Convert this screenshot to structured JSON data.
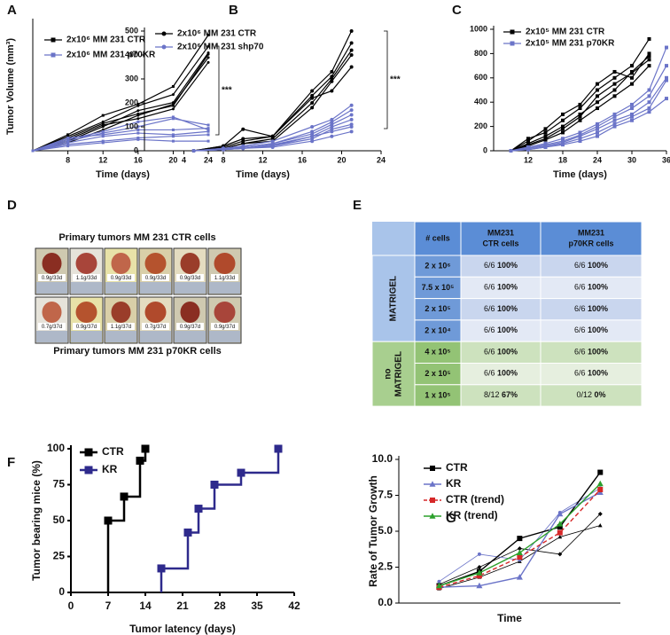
{
  "chart_data": [
    {
      "panel": "A",
      "type": "line",
      "xlabel": "Time (days)",
      "ylabel": "Tumor Volume (mm³)",
      "x": [
        4,
        8,
        12,
        16,
        20,
        24
      ],
      "xlim": [
        4,
        24.5
      ],
      "ylim": [
        0,
        800
      ],
      "xticks": [
        8,
        12,
        16,
        20,
        24
      ],
      "annotation": "***",
      "series": [
        {
          "name": "2x10⁶ MM 231 CTR",
          "color": "#000000",
          "marker": "square",
          "values": [
            0,
            100,
            220,
            290,
            400,
            720
          ]
        },
        {
          "color": "#000000",
          "marker": "circle",
          "values": [
            0,
            90,
            180,
            280,
            350,
            650
          ]
        },
        {
          "color": "#000000",
          "marker": "circle",
          "values": [
            0,
            60,
            150,
            250,
            300,
            610
          ]
        },
        {
          "color": "#000000",
          "marker": "circle",
          "values": [
            0,
            50,
            130,
            220,
            290,
            580
          ]
        },
        {
          "color": "#000000",
          "marker": "circle",
          "values": [
            0,
            70,
            160,
            200,
            260,
            550
          ]
        },
        {
          "color": "#000000",
          "marker": "circle",
          "values": [
            0,
            80,
            170,
            230,
            280,
            600
          ]
        },
        {
          "name": "2x10⁶ MM 231 p70KR",
          "color": "#6b74c8",
          "marker": "square",
          "values": [
            0,
            60,
            110,
            150,
            200,
            160
          ]
        },
        {
          "color": "#6b74c8",
          "marker": "square",
          "values": [
            0,
            80,
            100,
            130,
            130,
            140
          ]
        },
        {
          "color": "#6b74c8",
          "marker": "square",
          "values": [
            0,
            50,
            90,
            110,
            100,
            120
          ]
        },
        {
          "color": "#6b74c8",
          "marker": "square",
          "values": [
            0,
            40,
            60,
            80,
            90,
            100
          ]
        },
        {
          "color": "#6b74c8",
          "marker": "square",
          "values": [
            0,
            30,
            50,
            70,
            60,
            60
          ]
        },
        {
          "color": "#6b74c8",
          "marker": "square",
          "values": [
            0,
            70,
            120,
            180,
            210,
            130
          ]
        }
      ]
    },
    {
      "panel": "B",
      "type": "line",
      "xlabel": "Time (days)",
      "x": [
        5,
        8,
        10,
        13,
        17,
        19,
        21
      ],
      "xlim": [
        0,
        24
      ],
      "ylim": [
        0,
        500
      ],
      "xticks": [
        4,
        8,
        12,
        16,
        20,
        24
      ],
      "yticks": [
        0,
        100,
        200,
        300,
        400,
        500
      ],
      "annotation": "***",
      "series": [
        {
          "name": "2x10⁶ MM 231 CTR",
          "color": "#000000",
          "marker": "circle",
          "values": [
            0,
            20,
            90,
            60,
            250,
            330,
            500
          ]
        },
        {
          "color": "#000000",
          "marker": "circle",
          "values": [
            0,
            15,
            40,
            60,
            230,
            310,
            450
          ]
        },
        {
          "color": "#000000",
          "marker": "circle",
          "values": [
            0,
            10,
            30,
            50,
            200,
            300,
            420
          ]
        },
        {
          "color": "#000000",
          "marker": "circle",
          "values": [
            0,
            10,
            30,
            40,
            180,
            290,
            400
          ]
        },
        {
          "color": "#000000",
          "marker": "circle",
          "values": [
            0,
            20,
            50,
            60,
            220,
            250,
            350
          ]
        },
        {
          "name": "2x10⁶ MM 231 shp70",
          "color": "#6b74c8",
          "marker": "circle",
          "values": [
            0,
            10,
            20,
            40,
            100,
            130,
            190
          ]
        },
        {
          "color": "#6b74c8",
          "marker": "circle",
          "values": [
            0,
            10,
            15,
            30,
            80,
            120,
            170
          ]
        },
        {
          "color": "#6b74c8",
          "marker": "circle",
          "values": [
            0,
            5,
            15,
            30,
            70,
            110,
            150
          ]
        },
        {
          "color": "#6b74c8",
          "marker": "circle",
          "values": [
            0,
            5,
            10,
            25,
            60,
            100,
            130
          ]
        },
        {
          "color": "#6b74c8",
          "marker": "circle",
          "values": [
            0,
            5,
            10,
            20,
            50,
            90,
            110
          ]
        },
        {
          "color": "#6b74c8",
          "marker": "circle",
          "values": [
            0,
            5,
            10,
            20,
            60,
            80,
            100
          ]
        },
        {
          "color": "#6b74c8",
          "marker": "circle",
          "values": [
            0,
            5,
            10,
            15,
            40,
            60,
            80
          ]
        }
      ]
    },
    {
      "panel": "C",
      "type": "line",
      "xlabel": "Time (days)",
      "x": [
        9,
        12,
        15,
        18,
        21,
        24,
        27,
        30,
        33,
        36
      ],
      "xlim": [
        6,
        36
      ],
      "ylim": [
        0,
        1000
      ],
      "xticks": [
        12,
        18,
        24,
        30,
        36
      ],
      "yticks": [
        0,
        200,
        400,
        600,
        800,
        1000
      ],
      "series": [
        {
          "name": "2x10⁵ MM 231 CTR",
          "color": "#000000",
          "marker": "square",
          "values": [
            0,
            100,
            150,
            250,
            350,
            500,
            600,
            700,
            920,
            null
          ]
        },
        {
          "color": "#000000",
          "marker": "square",
          "values": [
            0,
            80,
            180,
            300,
            380,
            550,
            650,
            600,
            800,
            null
          ]
        },
        {
          "color": "#000000",
          "marker": "square",
          "values": [
            0,
            60,
            120,
            200,
            300,
            400,
            500,
            650,
            780,
            null
          ]
        },
        {
          "color": "#000000",
          "marker": "square",
          "values": [
            0,
            50,
            100,
            180,
            280,
            450,
            550,
            640,
            750,
            null
          ]
        },
        {
          "color": "#000000",
          "marker": "square",
          "values": [
            0,
            40,
            90,
            150,
            250,
            350,
            450,
            550,
            700,
            null
          ]
        },
        {
          "name": "2x10⁵ MM 231 p70KR",
          "color": "#6b74c8",
          "marker": "square",
          "values": [
            0,
            30,
            60,
            100,
            150,
            220,
            300,
            380,
            500,
            850
          ]
        },
        {
          "color": "#6b74c8",
          "marker": "square",
          "values": [
            0,
            20,
            50,
            80,
            130,
            200,
            280,
            350,
            450,
            700
          ]
        },
        {
          "color": "#6b74c8",
          "marker": "square",
          "values": [
            0,
            20,
            40,
            70,
            120,
            180,
            250,
            300,
            400,
            600
          ]
        },
        {
          "color": "#6b74c8",
          "marker": "square",
          "values": [
            0,
            10,
            30,
            60,
            100,
            150,
            220,
            280,
            350,
            580
          ]
        },
        {
          "color": "#6b74c8",
          "marker": "square",
          "values": [
            0,
            10,
            30,
            50,
            80,
            120,
            200,
            250,
            320,
            430
          ]
        }
      ]
    },
    {
      "panel": "F",
      "type": "step",
      "xlabel": "Tumor latency (days)",
      "ylabel": "Tumor bearing mice (%)",
      "xlim": [
        0,
        42
      ],
      "ylim": [
        0,
        100
      ],
      "xticks": [
        0,
        7,
        14,
        21,
        28,
        35,
        42
      ],
      "yticks": [
        0,
        25,
        50,
        75,
        100
      ],
      "series": [
        {
          "name": "CTR",
          "color": "#000000",
          "marker": "square",
          "x": [
            7,
            10,
            13,
            14
          ],
          "values": [
            50,
            66.7,
            91.7,
            100
          ]
        },
        {
          "name": "KR",
          "color": "#2e2a8c",
          "marker": "square",
          "x": [
            17,
            22,
            24,
            27,
            32,
            39
          ],
          "values": [
            16.7,
            41.7,
            58.3,
            75,
            83.3,
            100
          ]
        }
      ]
    },
    {
      "panel": "G",
      "type": "line",
      "xlabel": "Time",
      "ylabel": "Rate of Tumor Growth",
      "x": [
        1,
        2,
        3,
        4,
        5
      ],
      "xlim": [
        0,
        5.5
      ],
      "ylim": [
        0,
        10
      ],
      "yticks": [
        {
          "value": 0,
          "label": "0.0"
        },
        {
          "value": 2.5,
          "label": "2.5"
        },
        {
          "value": 5,
          "label": "5.0"
        },
        {
          "value": 7.5,
          "label": "7.5"
        },
        {
          "value": 10,
          "label": "10.0"
        }
      ],
      "series": [
        {
          "color": "#000000",
          "marker": "diamond",
          "values": [
            1.3,
            2.5,
            3.8,
            3.4,
            6.2
          ]
        },
        {
          "color": "#000000",
          "marker": "triangle",
          "values": [
            1.0,
            1.8,
            2.9,
            4.6,
            5.4
          ]
        },
        {
          "color": "#6b74c8",
          "marker": "circle",
          "values": [
            1.5,
            3.4,
            3.0,
            6.3,
            8.0
          ]
        },
        {
          "name": "CTR",
          "color": "#000000",
          "marker": "square",
          "values": [
            1.2,
            2.2,
            4.5,
            5.3,
            9.1
          ]
        },
        {
          "name": "KR",
          "color": "#6b74c8",
          "marker": "triangle",
          "values": [
            1.1,
            1.2,
            1.8,
            6.2,
            7.7
          ]
        },
        {
          "name": "CTR (trend)",
          "color": "#d62728",
          "marker": "square",
          "dash": true,
          "values": [
            1.1,
            1.9,
            3.2,
            4.9,
            7.9
          ]
        },
        {
          "name": "KR (trend)",
          "color": "#2ca02c",
          "marker": "triangle",
          "values": [
            1.2,
            2.1,
            3.5,
            5.5,
            8.3
          ]
        }
      ]
    }
  ],
  "photo_panel": {
    "panel": "D",
    "top_title": "Primary tumors MM 231 CTR cells",
    "top_labels": [
      "0.9g/33d",
      "1.1g/33d",
      "0.9g/33d",
      "0.9g/33d",
      "0.9g/33d",
      "1.1g/33d"
    ],
    "bottom_title": "Primary tumors MM 231 p70KR cells",
    "bottom_labels": [
      "0.7g/37d",
      "0.9g/37d",
      "1.1g/37d",
      "0.7g/37d",
      "0.9g/37d",
      "0.9g/37d"
    ]
  },
  "table_panel": {
    "panel": "E",
    "header": [
      "# cells",
      [
        "MM231",
        "CTR cells"
      ],
      [
        "MM231",
        "p70KR cells"
      ]
    ],
    "groups": [
      {
        "label": [
          "MATRIGEL"
        ],
        "rows": [
          [
            "2 x 10⁶",
            [
              "6/6",
              "100%"
            ],
            [
              "6/6",
              "100%"
            ]
          ],
          [
            "7.5 x 10⁵",
            [
              "6/6",
              "100%"
            ],
            [
              "6/6",
              "100%"
            ]
          ],
          [
            "2 x 10⁵",
            [
              "6/6",
              "100%"
            ],
            [
              "6/6",
              "100%"
            ]
          ],
          [
            "2 x 10⁴",
            [
              "6/6",
              "100%"
            ],
            [
              "6/6",
              "100%"
            ]
          ]
        ]
      },
      {
        "label": [
          "no",
          "MATRIGEL"
        ],
        "rows": [
          [
            "4 x 10⁵",
            [
              "6/6",
              "100%"
            ],
            [
              "6/6",
              "100%"
            ]
          ],
          [
            "2 x 10⁵",
            [
              "6/6",
              "100%"
            ],
            [
              "6/6",
              "100%"
            ]
          ],
          [
            "1 x 10⁵",
            [
              "8/12",
              "67%"
            ],
            [
              "0/12",
              "0%"
            ]
          ]
        ]
      }
    ]
  }
}
